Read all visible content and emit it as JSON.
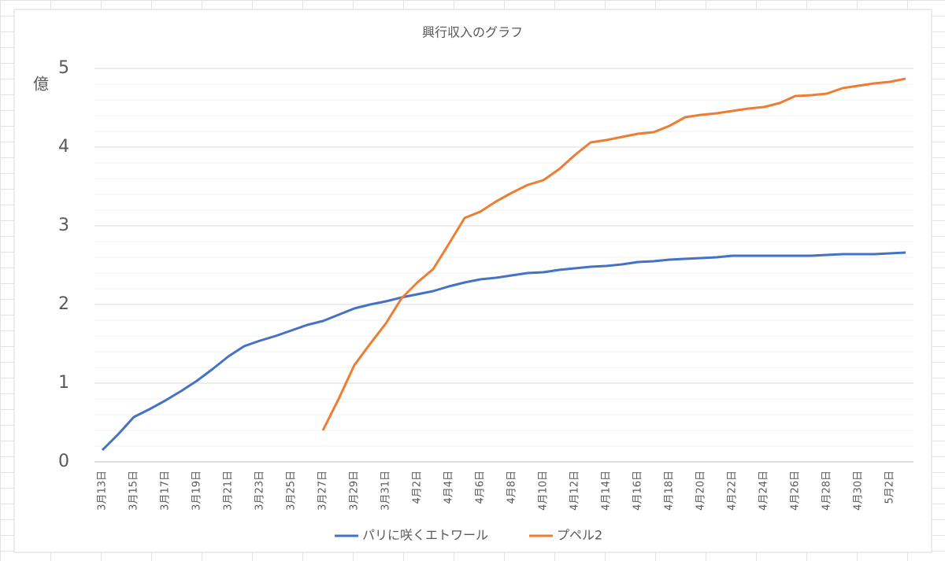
{
  "chart_data": {
    "type": "line",
    "title": "興行収入のグラフ",
    "y_label": "億",
    "categories": [
      "3月13日",
      null,
      "3月15日",
      null,
      "3月17日",
      null,
      "3月19日",
      null,
      "3月21日",
      null,
      "3月23日",
      null,
      "3月25日",
      null,
      "3月27日",
      null,
      "3月29日",
      null,
      "3月31日",
      null,
      "4月2日",
      null,
      "4月4日",
      null,
      "4月6日",
      null,
      "4月8日",
      null,
      "4月10日",
      null,
      "4月12日",
      null,
      "4月14日",
      null,
      "4月16日",
      null,
      "4月18日",
      null,
      "4月20日",
      null,
      "4月22日",
      null,
      "4月24日",
      null,
      "4月26日",
      null,
      "4月28日",
      null,
      "4月30日",
      null,
      "5月2日",
      null
    ],
    "series": [
      {
        "name": "パリに咲くエトワール",
        "color": "#4472c4",
        "values": [
          0.15,
          0.35,
          0.57,
          0.67,
          0.78,
          0.9,
          1.03,
          1.18,
          1.34,
          1.47,
          1.54,
          1.6,
          1.67,
          1.74,
          1.79,
          1.87,
          1.95,
          2.0,
          2.04,
          2.09,
          2.13,
          2.17,
          2.23,
          2.28,
          2.32,
          2.34,
          2.37,
          2.4,
          2.41,
          2.44,
          2.46,
          2.48,
          2.49,
          2.51,
          2.54,
          2.55,
          2.57,
          2.58,
          2.59,
          2.6,
          2.62,
          2.62,
          2.62,
          2.62,
          2.62,
          2.62,
          2.63,
          2.64,
          2.64,
          2.64,
          2.65,
          2.66
        ]
      },
      {
        "name": "プペル2",
        "color": "#ed7d31",
        "values": [
          null,
          null,
          null,
          null,
          null,
          null,
          null,
          null,
          null,
          null,
          null,
          null,
          null,
          null,
          0.4,
          0.8,
          1.23,
          1.5,
          1.76,
          2.08,
          2.28,
          2.45,
          2.77,
          3.1,
          3.18,
          3.31,
          3.42,
          3.52,
          3.58,
          3.72,
          3.9,
          4.06,
          4.09,
          4.13,
          4.17,
          4.19,
          4.27,
          4.38,
          4.41,
          4.43,
          4.46,
          4.49,
          4.51,
          4.56,
          4.65,
          4.66,
          4.68,
          4.75,
          4.78,
          4.81,
          4.83,
          4.87
        ]
      }
    ],
    "ylim": [
      0,
      5
    ],
    "yticks": [
      0,
      1,
      2,
      3,
      4,
      5
    ],
    "minor_yticks": [
      0.2,
      0.4,
      0.6,
      0.8,
      1.2,
      1.4,
      1.6,
      1.8,
      2.2,
      2.4,
      2.6,
      2.8,
      3.2,
      3.4,
      3.6,
      3.8,
      4.2,
      4.4,
      4.6,
      4.8
    ],
    "grid": true,
    "legend": "bottom"
  }
}
